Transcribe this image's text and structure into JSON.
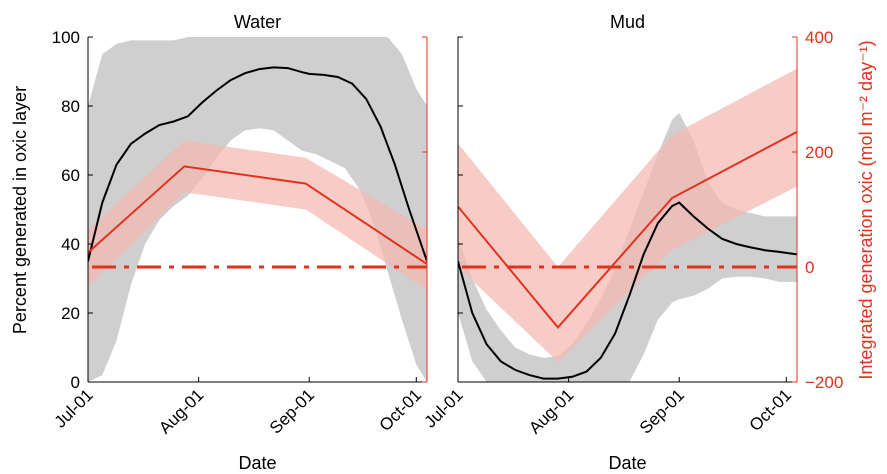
{
  "colors": {
    "black_line": "#000000",
    "red_line": "#e2321e",
    "red_band": "#f4b9b2",
    "grey_band": "#cfcfcf",
    "axis_red": "#e2321e"
  },
  "chart_data": {
    "type": "line",
    "shared": {
      "xlabel": "Date",
      "x_ticks": [
        "Jul-01",
        "Aug-01",
        "Sep-01",
        "Oct-01"
      ],
      "x_tick_days": [
        0,
        31,
        62,
        92
      ],
      "xlim_days": [
        0,
        95
      ],
      "left_axis": {
        "label": "Percent generated in oxic layer",
        "ylim": [
          0,
          100
        ],
        "ticks": [
          "0",
          "20",
          "40",
          "60",
          "80",
          "100"
        ],
        "tick_values": [
          0,
          20,
          40,
          60,
          80,
          100
        ]
      },
      "right_axis": {
        "label": "Integrated generation oxic (mol m⁻² day⁻¹)",
        "ylim": [
          -200,
          400
        ],
        "ticks": [
          "−200",
          "0",
          "200",
          "400"
        ],
        "tick_values": [
          -200,
          0,
          200,
          400
        ]
      }
    },
    "panels": [
      {
        "title": "Water",
        "percent_line": {
          "days": [
            0,
            4,
            8,
            12,
            16,
            20,
            24,
            28,
            32,
            36,
            40,
            44,
            48,
            52,
            56,
            60,
            62,
            66,
            70,
            74,
            78,
            82,
            86,
            90,
            95
          ],
          "values": [
            35,
            52,
            63,
            69,
            72,
            74.5,
            75.5,
            77,
            81,
            84.5,
            87.5,
            89.5,
            90.7,
            91.2,
            91,
            89.8,
            89.3,
            89,
            88.4,
            86.5,
            82,
            74,
            63,
            50,
            35
          ]
        },
        "percent_band": {
          "days": [
            0,
            4,
            8,
            12,
            16,
            20,
            24,
            28,
            32,
            36,
            40,
            44,
            48,
            52,
            56,
            60,
            64,
            68,
            72,
            76,
            80,
            84,
            88,
            92,
            95
          ],
          "upper": [
            80,
            95,
            98,
            99,
            99,
            99,
            99,
            100,
            100,
            100,
            100,
            100,
            100,
            100,
            100,
            100,
            100,
            100,
            100,
            100,
            100,
            100,
            95,
            85,
            80
          ],
          "lower": [
            0,
            2,
            12,
            28,
            40,
            47,
            51,
            54,
            59,
            65,
            70,
            73,
            73.5,
            73,
            70,
            67,
            66,
            64,
            62,
            56,
            46,
            32,
            18,
            5,
            0
          ]
        },
        "generation_line": {
          "days": [
            0,
            27,
            61,
            95
          ],
          "values": [
            25,
            175,
            145,
            5
          ]
        },
        "generation_band": {
          "days": [
            0,
            27,
            61,
            95
          ],
          "upper": [
            65,
            220,
            190,
            65
          ],
          "lower": [
            -35,
            130,
            100,
            -40
          ]
        },
        "zero_line": 0
      },
      {
        "title": "Mud",
        "percent_line": {
          "days": [
            0,
            4,
            8,
            12,
            16,
            20,
            24,
            28,
            32,
            36,
            40,
            44,
            48,
            52,
            56,
            60,
            62,
            66,
            70,
            74,
            78,
            82,
            86,
            90,
            95
          ],
          "values": [
            35,
            20,
            11,
            6,
            3.5,
            2,
            1,
            1,
            1.5,
            3,
            7,
            14,
            25,
            37,
            46,
            51,
            52,
            48,
            44.5,
            41.5,
            40,
            39,
            38.2,
            37.7,
            37
          ]
        },
        "percent_band": {
          "days": [
            0,
            4,
            8,
            12,
            16,
            20,
            24,
            28,
            32,
            36,
            40,
            44,
            48,
            52,
            56,
            60,
            62,
            66,
            70,
            74,
            78,
            82,
            86,
            90,
            95
          ],
          "upper": [
            42,
            30,
            21,
            15,
            10,
            8,
            7,
            7.5,
            11,
            17,
            24,
            33,
            44,
            55,
            66,
            76,
            78,
            70,
            58,
            52,
            50,
            49,
            48,
            48,
            48
          ],
          "lower": [
            20,
            6,
            0,
            0,
            0,
            0,
            0,
            0,
            0,
            0,
            0,
            0,
            0,
            8,
            18,
            23,
            24,
            25,
            27,
            30,
            30.5,
            30.5,
            30,
            29,
            29
          ]
        },
        "generation_line": {
          "days": [
            0,
            28,
            60,
            95
          ],
          "values": [
            105,
            -105,
            120,
            235
          ]
        },
        "generation_band": {
          "days": [
            0,
            28,
            60,
            95
          ],
          "upper": [
            215,
            0,
            230,
            345
          ],
          "lower": [
            0,
            -165,
            30,
            140
          ]
        },
        "zero_line": 0
      }
    ]
  }
}
